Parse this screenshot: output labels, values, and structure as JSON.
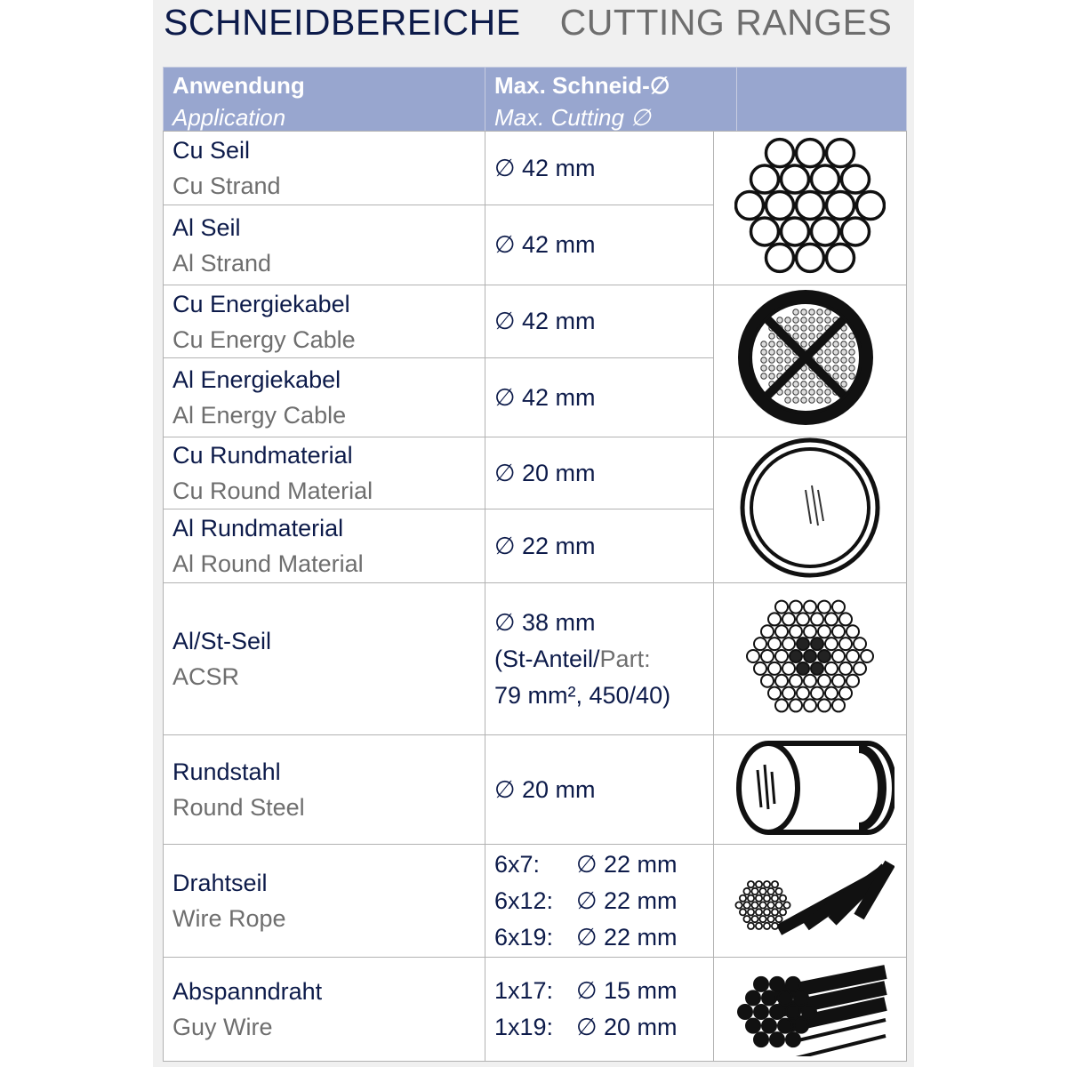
{
  "title": {
    "de": "SCHNEIDBEREICHE",
    "en": "CUTTING RANGES"
  },
  "header": {
    "application_de": "Anwendung",
    "application_en": "Application",
    "cutting_de": "Max. Schneid-∅",
    "cutting_en": "Max. Cutting ∅"
  },
  "rows": [
    {
      "de": "Cu Seil",
      "en": "Cu Strand",
      "cut": [
        "∅ 42 mm"
      ]
    },
    {
      "de": "Al Seil",
      "en": "Al Strand",
      "cut": [
        "∅ 42 mm"
      ]
    },
    {
      "de": "Cu Energiekabel",
      "en": "Cu Energy Cable",
      "cut": [
        "∅ 42 mm"
      ]
    },
    {
      "de": "Al Energiekabel",
      "en": "Al Energy Cable",
      "cut": [
        "∅ 42 mm"
      ]
    },
    {
      "de": "Cu Rundmaterial",
      "en": "Cu Round Material",
      "cut": [
        "∅ 20 mm"
      ]
    },
    {
      "de": "Al Rundmaterial",
      "en": "Al Round Material",
      "cut": [
        "∅ 22 mm"
      ]
    },
    {
      "de": "Al/St-Seil",
      "en": "ACSR",
      "cut": [
        "∅ 38 mm"
      ],
      "cut_note_de": "(St-Anteil/",
      "cut_note_en": "Part:",
      "cut_note_value": "79 mm², 450/40)"
    },
    {
      "de": "Rundstahl",
      "en": "Round Steel",
      "cut": [
        "∅ 20 mm"
      ]
    },
    {
      "de": "Drahtseil",
      "en": "Wire Rope",
      "cut_table": [
        {
          "label": "6x7:",
          "value": "∅ 22 mm"
        },
        {
          "label": "6x12:",
          "value": "∅ 22 mm"
        },
        {
          "label": "6x19:",
          "value": "∅ 22 mm"
        }
      ]
    },
    {
      "de": "Abspanndraht",
      "en": "Guy Wire",
      "cut_table": [
        {
          "label": "1x17:",
          "value": "∅ 15 mm"
        },
        {
          "label": "1x19:",
          "value": "∅ 20 mm"
        }
      ]
    }
  ],
  "images": [
    "strand-cross-section-icon",
    "energy-cable-cross-section-icon",
    "round-material-icon",
    "acsr-cross-section-icon",
    "round-steel-icon",
    "wire-rope-icon",
    "guy-wire-icon"
  ],
  "colors": {
    "header_bg": "#98a6cf",
    "text_de": "#0d1b4a",
    "text_en": "#6e6e6e",
    "border": "#b2b2b2"
  }
}
